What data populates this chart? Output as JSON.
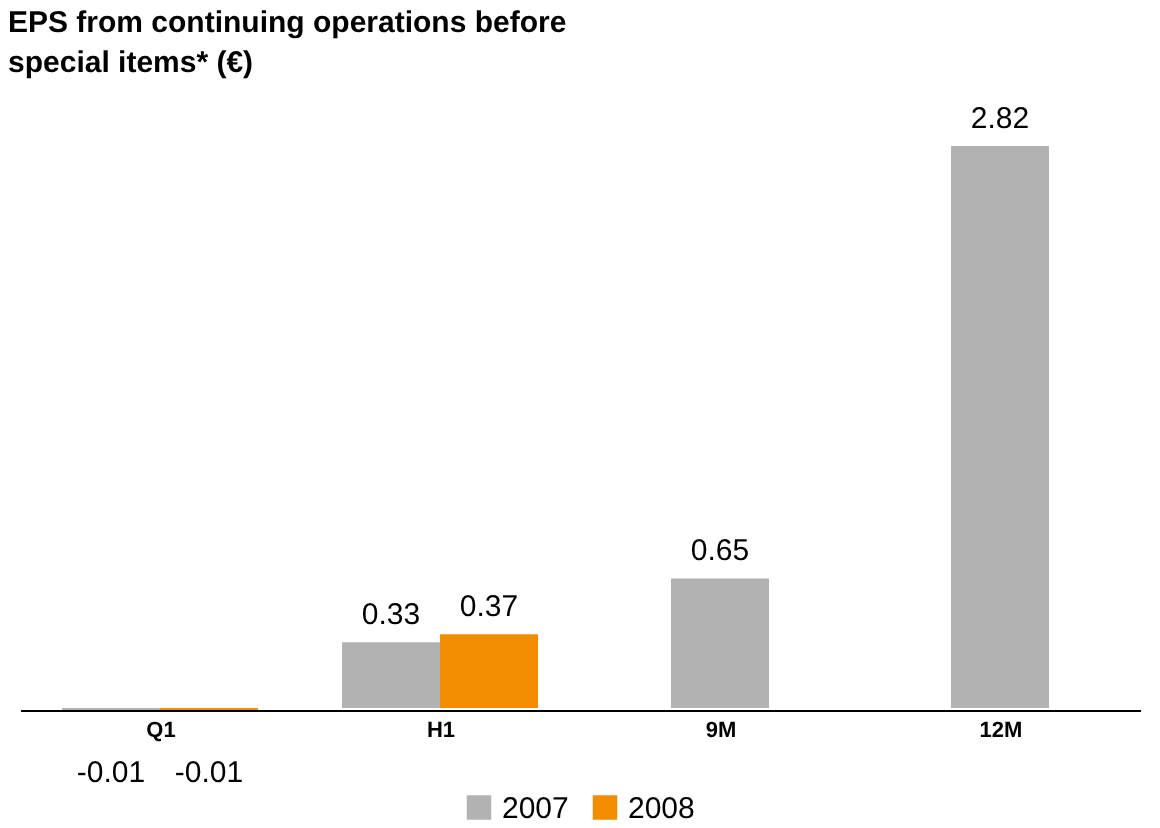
{
  "chart_data": {
    "type": "bar",
    "title": "EPS from continuing operations before special items* (€)",
    "categories": [
      "Q1",
      "H1",
      "9M",
      "12M"
    ],
    "series": [
      {
        "name": "2007",
        "color": "#b2b2b2",
        "values": [
          -0.01,
          0.33,
          0.65,
          2.82
        ]
      },
      {
        "name": "2008",
        "color": "#f28c00",
        "values": [
          -0.01,
          0.37,
          null,
          null
        ]
      }
    ],
    "data_labels": true,
    "legend": "bottom",
    "grid": false
  }
}
